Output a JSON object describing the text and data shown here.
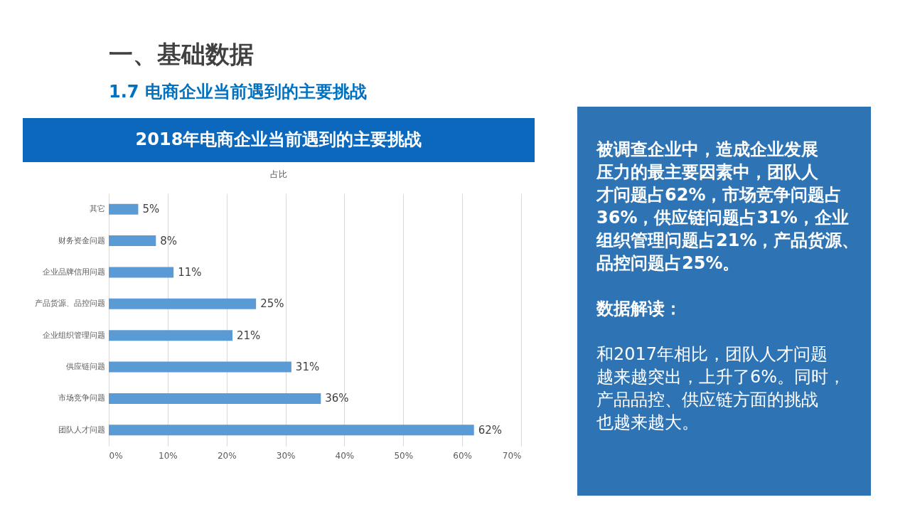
{
  "chart_data": {
    "type": "bar",
    "orientation": "horizontal",
    "title": "2018年电商企业当前遇到的主要挑战",
    "subtitle": "占比",
    "categories": [
      "其它",
      "财务资金问题",
      "企业品牌信用问题",
      "产品货源、品控问题",
      "企业组织管理问题",
      "供应链问题",
      "市场竞争问题",
      "团队人才问题"
    ],
    "values": [
      5,
      8,
      11,
      25,
      21,
      31,
      36,
      62
    ],
    "value_labels": [
      "5%",
      "8%",
      "11%",
      "25%",
      "21%",
      "31%",
      "36%",
      "62%"
    ],
    "color": "#5b9bd5",
    "xlim": [
      0,
      70
    ],
    "xticks": [
      {
        "value": 0,
        "label": "0%"
      },
      {
        "value": 10,
        "label": "10%"
      },
      {
        "value": 20,
        "label": "20%"
      },
      {
        "value": 30,
        "label": "30%"
      },
      {
        "value": 40,
        "label": "40%"
      },
      {
        "value": 50,
        "label": "50%"
      },
      {
        "value": 60,
        "label": "60%"
      },
      {
        "value": 70,
        "label": "70%"
      }
    ],
    "grid": "x",
    "annotations": [
      "一、基础数据",
      "1.7 电商企业当前遇到的主要挑战",
      "被调查企业中，造成企业发展压力的最主要因素中，团队人才问题占62%，市场竞争问题占36%，供应链问题占31%，企业组织管理问题占21%，产品货源、品控问题占25%。",
      "数据解读：",
      "和2017年相比，团队人才问题越来越突出，上升了6%。同时，产品品控、供应链方面的挑战也越来越大。"
    ]
  }
}
